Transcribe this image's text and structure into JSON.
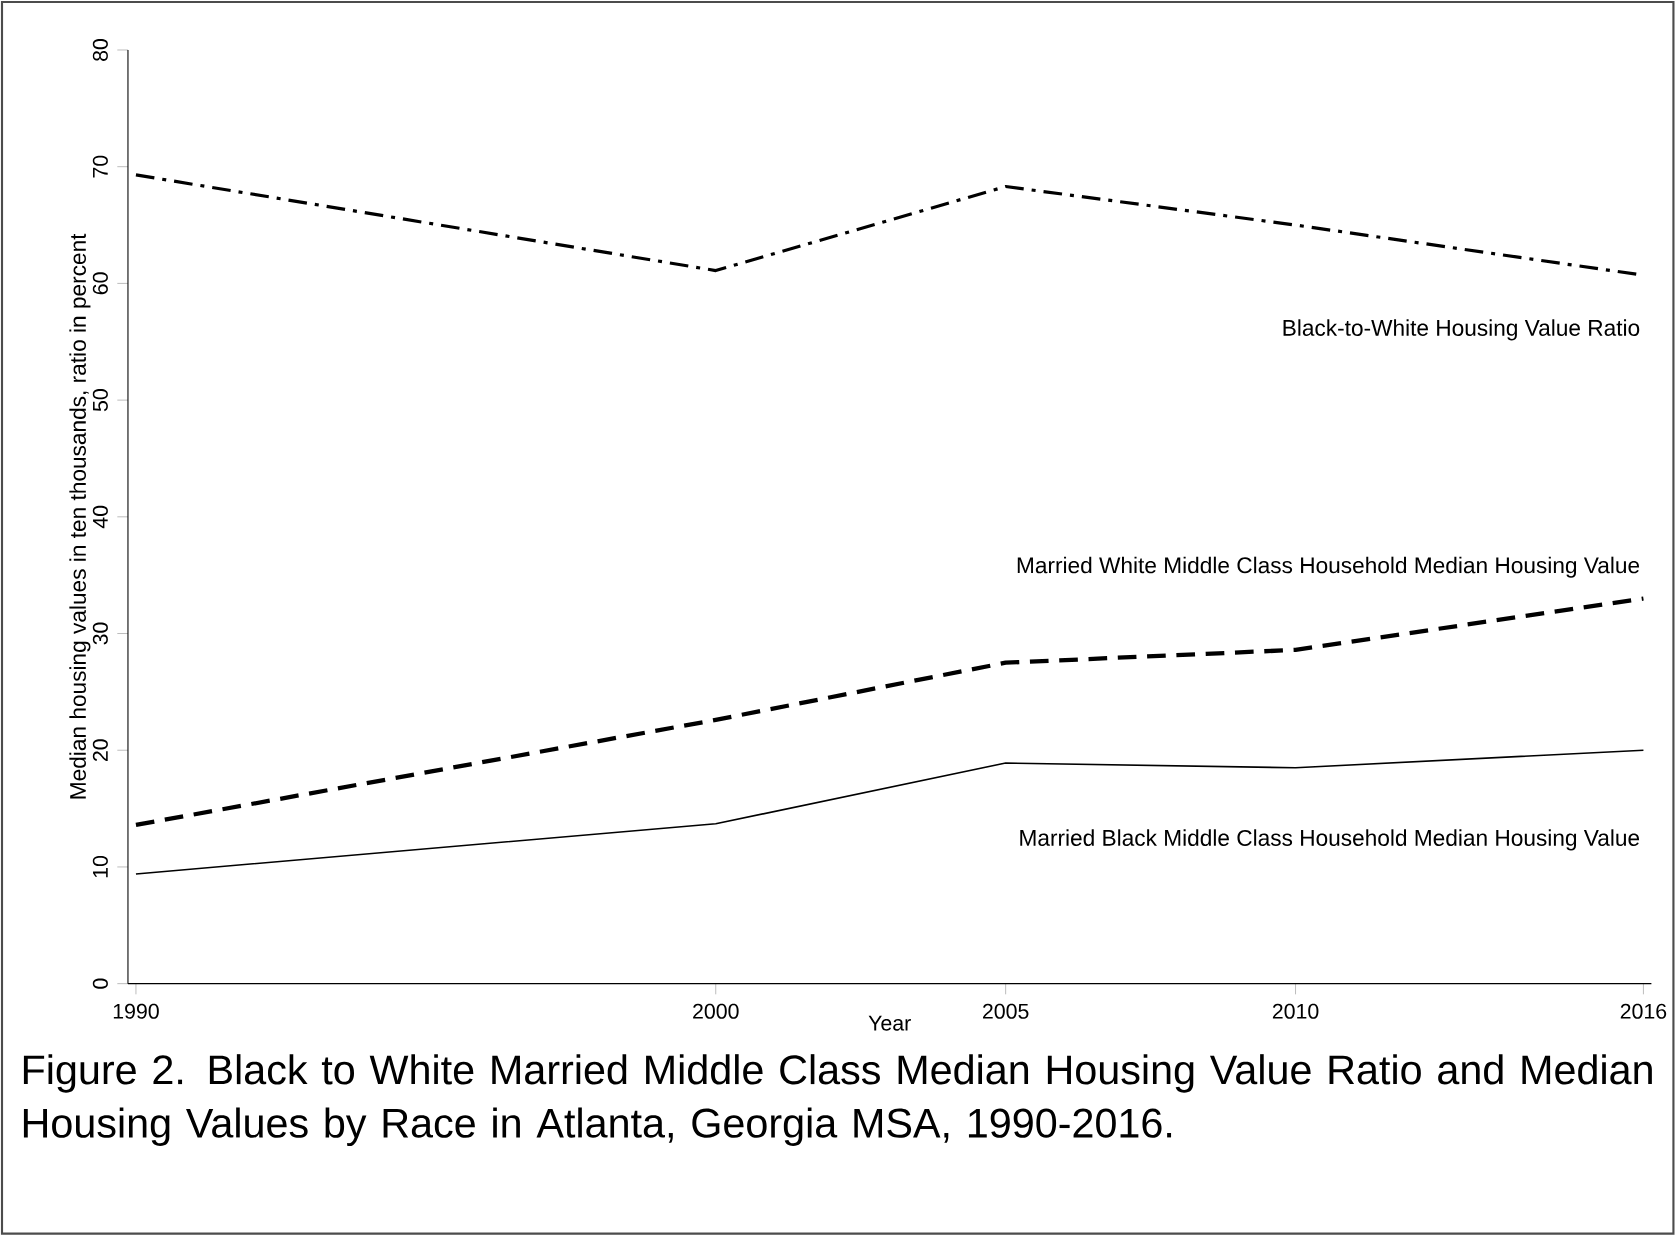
{
  "chart_data": {
    "type": "line",
    "title": "Figure 2. Black to White Married Middle Class Median Housing Value Ratio and Median Housing Values by Race in Atlanta, Georgia MSA, 1990-2016.",
    "xlabel": "Year",
    "ylabel": "Median housing values in ten thousands, ratio in percent",
    "x": [
      1990,
      2000,
      2005,
      2010,
      2016
    ],
    "xlim": [
      1990,
      2016
    ],
    "xticks": [
      1990,
      2000,
      2005,
      2010,
      2016
    ],
    "ylim": [
      0,
      80
    ],
    "yticks": [
      0,
      10,
      20,
      30,
      40,
      50,
      60,
      70,
      80
    ],
    "grid": false,
    "legend": false,
    "series": [
      {
        "name": "Black-to-White Housing Value Ratio",
        "color": "#000000",
        "line_style": "dashdot",
        "values": [
          69.3,
          61.1,
          68.3,
          65.0,
          60.7
        ]
      },
      {
        "name": "Married White Middle Class Household Median Housing Value",
        "color": "#000000",
        "line_style": "dashed",
        "values": [
          13.6,
          22.6,
          27.5,
          28.6,
          33.0
        ]
      },
      {
        "name": "Married Black Middle Class Household Median Housing Value",
        "color": "#000000",
        "line_style": "solid",
        "values": [
          9.4,
          13.7,
          18.9,
          18.5,
          20.0
        ]
      }
    ]
  }
}
